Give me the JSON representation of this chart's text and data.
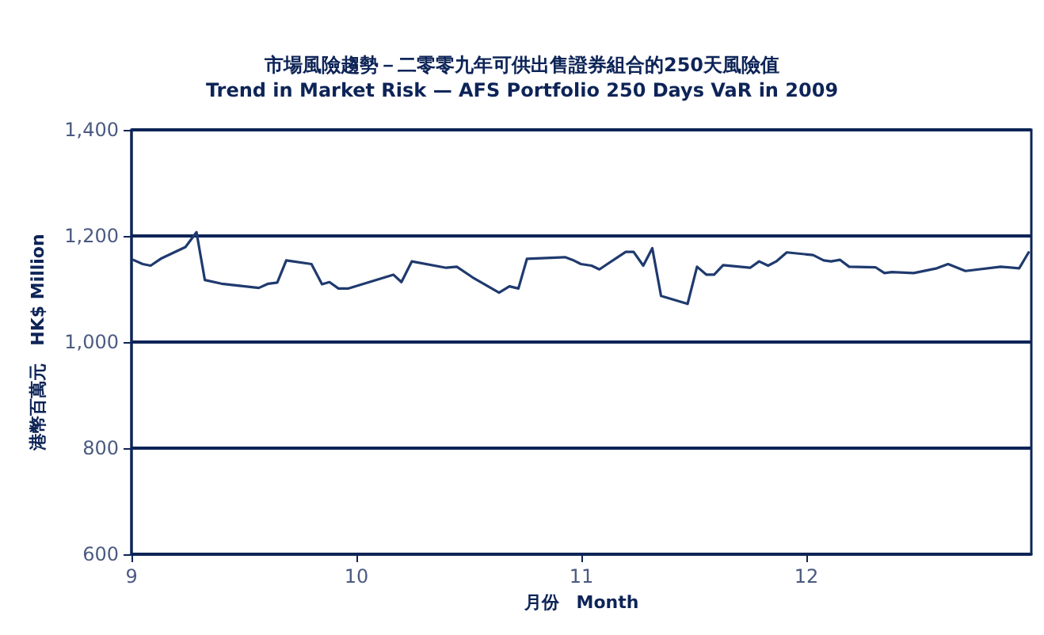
{
  "chart_data": {
    "type": "line",
    "title": "市場風險趨勢－二零零九年可供出售證券組合的250天風險值",
    "subtitle": "Trend in Market Risk — AFS Portfolio 250 Days VaR in 2009",
    "xlabel": "月份　Month",
    "ylabel": "港幣百萬元　HK$ Million",
    "series": [
      {
        "color": "#1f3a6e",
        "x": [
          9.007,
          9.05,
          9.085,
          9.13,
          9.24,
          9.289,
          9.326,
          9.4,
          9.566,
          9.608,
          9.648,
          9.688,
          9.8,
          9.847,
          9.88,
          9.92,
          9.965,
          10.164,
          10.2,
          10.246,
          10.399,
          10.446,
          10.516,
          10.634,
          10.68,
          10.72,
          10.758,
          10.927,
          10.96,
          10.998,
          11.045,
          11.08,
          11.197,
          11.232,
          11.275,
          11.315,
          11.354,
          11.472,
          11.514,
          11.556,
          11.59,
          11.63,
          11.75,
          11.79,
          11.83,
          11.866,
          11.913,
          12.03,
          12.077,
          12.11,
          12.15,
          12.19,
          12.307,
          12.347,
          12.38,
          12.477,
          12.58,
          12.63,
          12.707,
          12.864,
          12.946,
          12.988
        ],
        "values": [
          1155,
          1147,
          1144,
          1157,
          1179,
          1207,
          1117,
          1110,
          1102,
          1110,
          1112,
          1154,
          1147,
          1109,
          1113,
          1101,
          1101,
          1127,
          1113,
          1152,
          1140,
          1142,
          1122,
          1093,
          1105,
          1101,
          1157,
          1160,
          1155,
          1147,
          1144,
          1137,
          1170,
          1170,
          1144,
          1177,
          1087,
          1072,
          1142,
          1127,
          1127,
          1145,
          1140,
          1152,
          1144,
          1152,
          1169,
          1164,
          1154,
          1152,
          1155,
          1142,
          1141,
          1130,
          1132,
          1130,
          1139,
          1147,
          1134,
          1142,
          1139,
          1169
        ]
      }
    ],
    "xlim": [
      9,
      13
    ],
    "xticks": [
      9,
      10,
      11,
      12
    ],
    "ylim": [
      600,
      1400
    ],
    "yticks": [
      600,
      800,
      {
        "value": 1000,
        "label": "1,000"
      },
      {
        "value": 1200,
        "label": "1,200"
      },
      {
        "value": 1400,
        "label": "1,400"
      }
    ],
    "grid": "y",
    "marker": "none",
    "line_style": "solid"
  }
}
